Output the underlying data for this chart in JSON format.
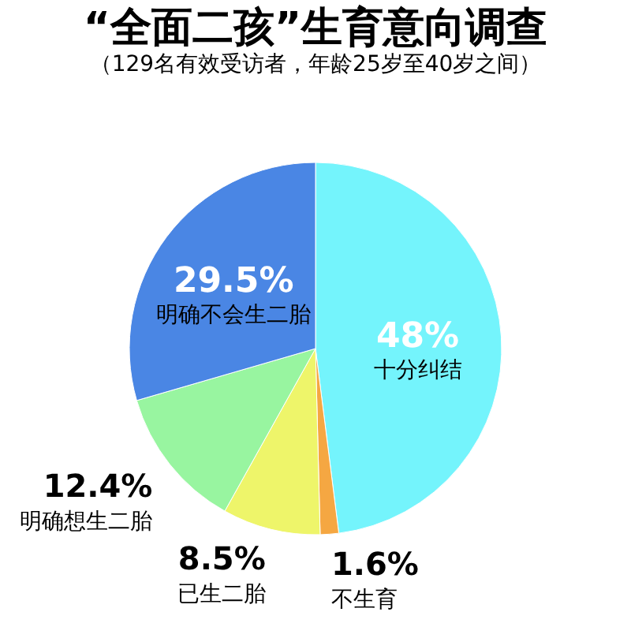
{
  "chart_data": {
    "type": "pie",
    "title": "“全面二孩”生育意向调查",
    "subtitle": "（129名有效受访者，年龄25岁至40岁之间）",
    "categories": [
      "十分纠结",
      "不生育",
      "已生二胎",
      "明确想生二胎",
      "明确不会生二胎"
    ],
    "values": [
      48,
      1.6,
      8.5,
      12.4,
      29.5
    ],
    "value_labels": [
      "48%",
      "1.6%",
      "8.5%",
      "12.4%",
      "29.5%"
    ],
    "colors": [
      "#74f4fc",
      "#f5a742",
      "#eef56a",
      "#98f5a0",
      "#4a86e4"
    ],
    "legend": false
  }
}
